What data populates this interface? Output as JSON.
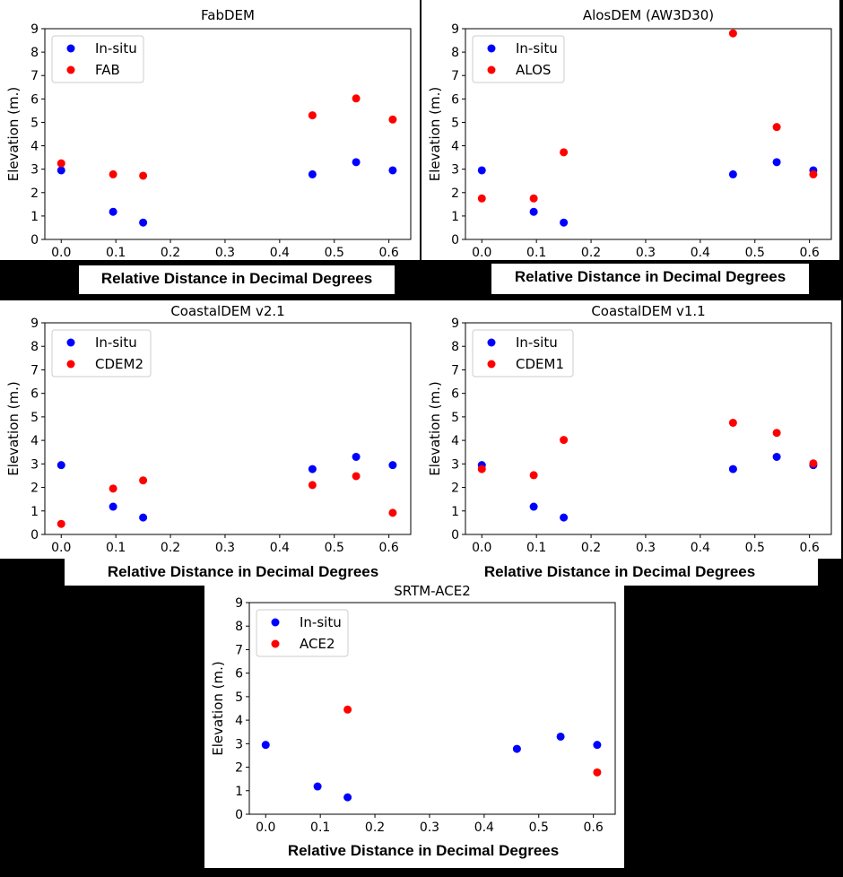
{
  "colors": {
    "insitu": "#0000ff",
    "dem": "#ff0000",
    "background": "#000000"
  },
  "chart_data": [
    {
      "type": "scatter",
      "title": "FabDEM",
      "xlabel": "Relative Distance in Decimal Degrees",
      "ylabel": "Elevation (m.)",
      "xlim": [
        -0.03,
        0.64
      ],
      "ylim": [
        0,
        9
      ],
      "xticks": [
        "0.0",
        "0.1",
        "0.2",
        "0.3",
        "0.4",
        "0.5",
        "0.6"
      ],
      "yticks": [
        "0",
        "1",
        "2",
        "3",
        "4",
        "5",
        "6",
        "7",
        "8",
        "9"
      ],
      "legend_position": "top-left",
      "series": [
        {
          "name": "In-situ",
          "color": "#0000ff",
          "x": [
            0.0,
            0.095,
            0.15,
            0.46,
            0.54,
            0.607
          ],
          "y": [
            2.95,
            1.18,
            0.72,
            2.78,
            3.3,
            2.95
          ]
        },
        {
          "name": "FAB",
          "color": "#ff0000",
          "x": [
            0.0,
            0.095,
            0.15,
            0.46,
            0.54,
            0.607
          ],
          "y": [
            3.25,
            2.78,
            2.72,
            5.3,
            6.02,
            5.12
          ]
        }
      ]
    },
    {
      "type": "scatter",
      "title": "AlosDEM (AW3D30)",
      "xlabel": "Relative Distance in Decimal Degrees",
      "ylabel": "Elevation (m.)",
      "xlim": [
        -0.03,
        0.64
      ],
      "ylim": [
        0,
        9
      ],
      "xticks": [
        "0.0",
        "0.1",
        "0.2",
        "0.3",
        "0.4",
        "0.5",
        "0.6"
      ],
      "yticks": [
        "0",
        "1",
        "2",
        "3",
        "4",
        "5",
        "6",
        "7",
        "8",
        "9"
      ],
      "legend_position": "top-left",
      "series": [
        {
          "name": "In-situ",
          "color": "#0000ff",
          "x": [
            0.0,
            0.095,
            0.15,
            0.46,
            0.54,
            0.607
          ],
          "y": [
            2.95,
            1.18,
            0.72,
            2.78,
            3.3,
            2.95
          ]
        },
        {
          "name": "ALOS",
          "color": "#ff0000",
          "x": [
            0.0,
            0.095,
            0.15,
            0.46,
            0.54,
            0.607
          ],
          "y": [
            1.75,
            1.75,
            3.72,
            8.8,
            4.8,
            2.78
          ]
        }
      ]
    },
    {
      "type": "scatter",
      "title": "CoastalDEM v2.1",
      "xlabel": "Relative Distance in Decimal Degrees",
      "ylabel": "Elevation (m.)",
      "xlim": [
        -0.03,
        0.64
      ],
      "ylim": [
        0,
        9
      ],
      "xticks": [
        "0.0",
        "0.1",
        "0.2",
        "0.3",
        "0.4",
        "0.5",
        "0.6"
      ],
      "yticks": [
        "0",
        "1",
        "2",
        "3",
        "4",
        "5",
        "6",
        "7",
        "8",
        "9"
      ],
      "legend_position": "top-left",
      "series": [
        {
          "name": "In-situ",
          "color": "#0000ff",
          "x": [
            0.0,
            0.095,
            0.15,
            0.46,
            0.54,
            0.607
          ],
          "y": [
            2.95,
            1.18,
            0.72,
            2.78,
            3.3,
            2.95
          ]
        },
        {
          "name": "CDEM2",
          "color": "#ff0000",
          "x": [
            0.0,
            0.095,
            0.15,
            0.46,
            0.54,
            0.607
          ],
          "y": [
            0.45,
            1.95,
            2.3,
            2.1,
            2.48,
            0.92
          ]
        }
      ]
    },
    {
      "type": "scatter",
      "title": "CoastalDEM v1.1",
      "xlabel": "Relative Distance in Decimal Degrees",
      "ylabel": "Elevation (m.)",
      "xlim": [
        -0.03,
        0.64
      ],
      "ylim": [
        0,
        9
      ],
      "xticks": [
        "0.0",
        "0.1",
        "0.2",
        "0.3",
        "0.4",
        "0.5",
        "0.6"
      ],
      "yticks": [
        "0",
        "1",
        "2",
        "3",
        "4",
        "5",
        "6",
        "7",
        "8",
        "9"
      ],
      "legend_position": "top-left",
      "series": [
        {
          "name": "In-situ",
          "color": "#0000ff",
          "x": [
            0.0,
            0.095,
            0.15,
            0.46,
            0.54,
            0.607
          ],
          "y": [
            2.95,
            1.18,
            0.72,
            2.78,
            3.3,
            2.95
          ]
        },
        {
          "name": "CDEM1",
          "color": "#ff0000",
          "x": [
            0.0,
            0.095,
            0.15,
            0.46,
            0.54,
            0.607
          ],
          "y": [
            2.78,
            2.52,
            4.02,
            4.75,
            4.32,
            3.02
          ]
        }
      ]
    },
    {
      "type": "scatter",
      "title": "SRTM-ACE2",
      "xlabel": "Relative Distance in Decimal Degrees",
      "ylabel": "Elevation (m.)",
      "xlim": [
        -0.03,
        0.64
      ],
      "ylim": [
        0,
        9
      ],
      "xticks": [
        "0.0",
        "0.1",
        "0.2",
        "0.3",
        "0.4",
        "0.5",
        "0.6"
      ],
      "yticks": [
        "0",
        "1",
        "2",
        "3",
        "4",
        "5",
        "6",
        "7",
        "8",
        "9"
      ],
      "legend_position": "top-left",
      "series": [
        {
          "name": "In-situ",
          "color": "#0000ff",
          "x": [
            0.0,
            0.095,
            0.15,
            0.46,
            0.54,
            0.607
          ],
          "y": [
            2.95,
            1.18,
            0.72,
            2.78,
            3.3,
            2.95
          ]
        },
        {
          "name": "ACE2",
          "color": "#ff0000",
          "x": [
            0.15,
            0.607
          ],
          "y": [
            4.45,
            1.78
          ]
        }
      ]
    }
  ]
}
